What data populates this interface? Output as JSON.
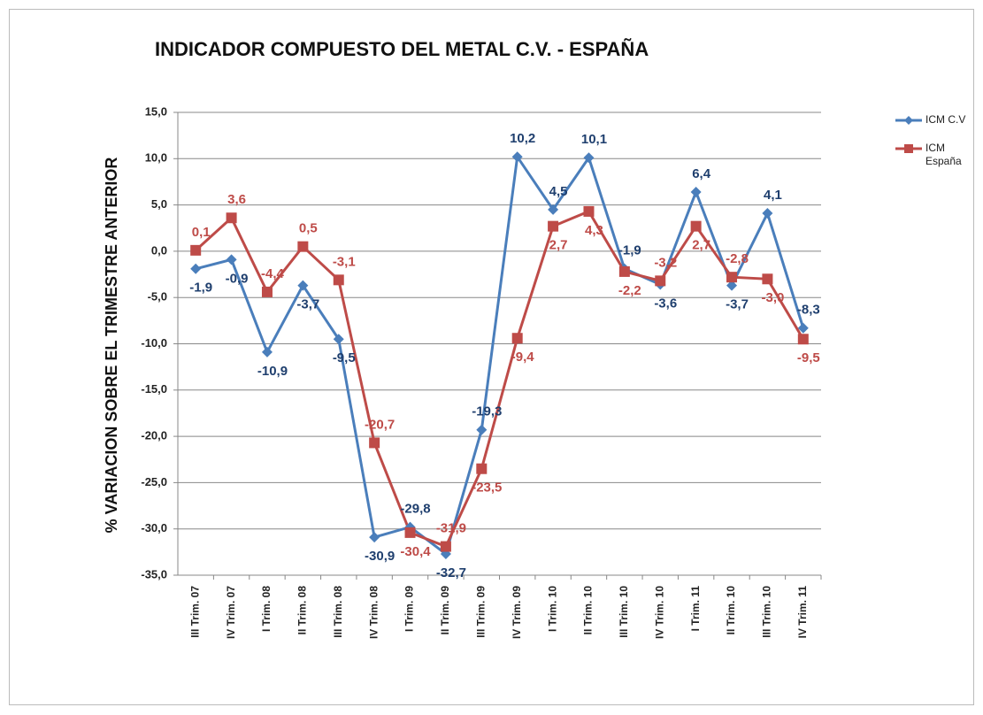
{
  "chart_data": {
    "type": "line",
    "title": "INDICADOR COMPUESTO DEL METAL C.V. - ESPAÑA",
    "y_label": "% VARIACION SOBRE EL TRIMESTRE  ANTERIOR",
    "categories": [
      "III Trim. 07",
      "IV Trim. 07",
      "I Trim. 08",
      "II Trim. 08",
      "III Trim. 08",
      "IV Trim. 08",
      "I Trim. 09",
      "II Trim. 09",
      "III Trim. 09",
      "IV Trim. 09",
      "I Trim. 10",
      "II Trim. 10",
      "III Trim. 10",
      "IV Trim. 10",
      "I Trim. 11",
      "II Trim. 10",
      "III Trim. 10",
      "IV Trim. 11"
    ],
    "series": [
      {
        "name": "ICM C.V",
        "color": "#4a7ebb",
        "marker": "diamond",
        "values": [
          -1.9,
          -0.9,
          -10.9,
          -3.7,
          -9.5,
          -30.9,
          -29.8,
          -32.7,
          -19.3,
          10.2,
          4.5,
          10.1,
          -1.9,
          -3.6,
          6.4,
          -3.7,
          4.1,
          -8.3
        ],
        "value_labels": [
          "-1,9",
          "-0,9",
          "-10,9",
          "-3,7",
          "-9,5",
          "-30,9",
          "-29,8",
          "-32,7",
          "-19,3",
          "10,2",
          "4,5",
          "10,1",
          "-1,9",
          "-3,6",
          "6,4",
          "-3,7",
          "4,1",
          "-8,3"
        ]
      },
      {
        "name": "ICM España",
        "color": "#be4b48",
        "marker": "square",
        "values": [
          0.1,
          3.6,
          -4.4,
          0.5,
          -3.1,
          -20.7,
          -30.4,
          -31.9,
          -23.5,
          -9.4,
          2.7,
          4.3,
          -2.2,
          -3.2,
          2.7,
          -2.8,
          -3.0,
          -9.5
        ],
        "value_labels": [
          "0,1",
          "3,6",
          "-4,4",
          "0,5",
          "-3,1",
          "-20,7",
          "-30,4",
          "-31,9",
          "-23,5",
          "-9,4",
          "2,7",
          "4,3",
          "-2,2",
          "-3,2",
          "2,7",
          "-2,8",
          "-3,0",
          "-9,5"
        ]
      }
    ],
    "ylim": [
      -35,
      15
    ],
    "yticks": [
      {
        "value": -35,
        "label": "-35,0"
      },
      {
        "value": -30,
        "label": "-30,0"
      },
      {
        "value": -25,
        "label": "-25,0"
      },
      {
        "value": -20,
        "label": "-20,0"
      },
      {
        "value": -15,
        "label": "-15,0"
      },
      {
        "value": -10,
        "label": "-10,0"
      },
      {
        "value": -5,
        "label": "-5,0"
      },
      {
        "value": 0,
        "label": "0,0"
      },
      {
        "value": 5,
        "label": "5,0"
      },
      {
        "value": 10,
        "label": "10,0"
      },
      {
        "value": 15,
        "label": "15,0"
      }
    ],
    "grid": true,
    "legend": "right"
  }
}
